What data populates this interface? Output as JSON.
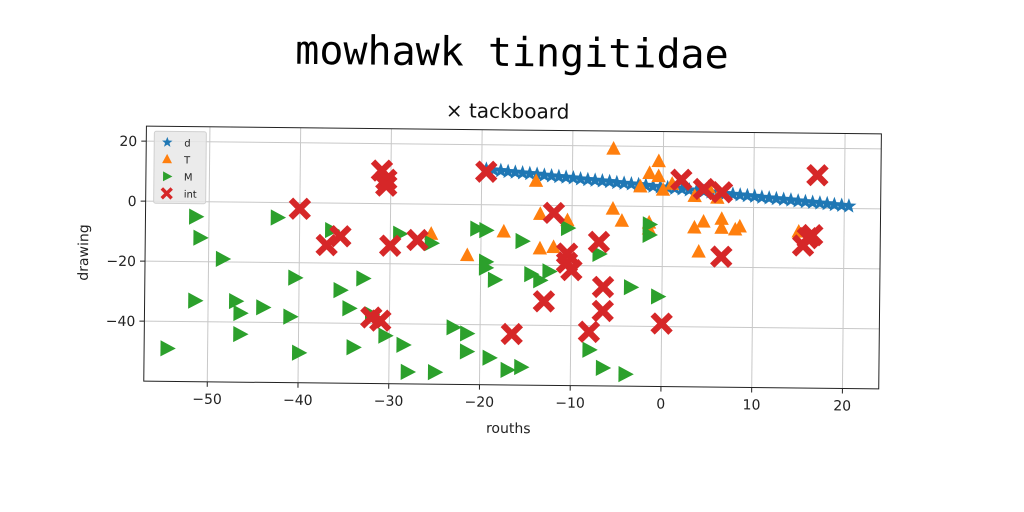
{
  "suptitle": "mowhawk tingitidae",
  "chart_data": {
    "type": "scatter",
    "title": "× tackboard",
    "xlabel": "rouths",
    "ylabel": "drawing",
    "xlim": [
      -57,
      24
    ],
    "ylim": [
      -60,
      25
    ],
    "xticks": [
      -50,
      -40,
      -30,
      -20,
      -10,
      0,
      10,
      20
    ],
    "xtick_labels": [
      "−50",
      "−40",
      "−30",
      "−20",
      "−10",
      "0",
      "10",
      "20"
    ],
    "yticks": [
      20,
      0,
      -20,
      -40
    ],
    "ytick_labels": [
      "20",
      "0",
      "−20",
      "−40"
    ],
    "grid": true,
    "legend_position": "top-left",
    "series": [
      {
        "name": "d",
        "marker": "star",
        "color": "#1f77b4",
        "points": [
          [
            -19.5,
            11.8
          ],
          [
            -18.7,
            11.6
          ],
          [
            -17.9,
            11.4
          ],
          [
            -17.1,
            11.1
          ],
          [
            -16.3,
            10.9
          ],
          [
            -15.5,
            10.7
          ],
          [
            -14.7,
            10.5
          ],
          [
            -13.9,
            10.3
          ],
          [
            -13.1,
            10.0
          ],
          [
            -12.3,
            9.8
          ],
          [
            -11.5,
            9.6
          ],
          [
            -10.7,
            9.4
          ],
          [
            -9.9,
            9.2
          ],
          [
            -9.1,
            8.9
          ],
          [
            -8.3,
            8.7
          ],
          [
            -7.5,
            8.5
          ],
          [
            -6.7,
            8.3
          ],
          [
            -5.9,
            8.1
          ],
          [
            -5.1,
            7.8
          ],
          [
            -4.3,
            7.6
          ],
          [
            -3.5,
            7.4
          ],
          [
            -2.7,
            7.2
          ],
          [
            -1.9,
            7.0
          ],
          [
            -1.1,
            6.7
          ],
          [
            -0.3,
            6.5
          ],
          [
            0.5,
            6.3
          ],
          [
            1.3,
            6.1
          ],
          [
            2.1,
            5.9
          ],
          [
            2.9,
            5.6
          ],
          [
            3.7,
            5.4
          ],
          [
            4.5,
            5.2
          ],
          [
            5.3,
            5.0
          ],
          [
            6.1,
            4.8
          ],
          [
            6.9,
            4.5
          ],
          [
            7.7,
            4.3
          ],
          [
            8.5,
            4.1
          ],
          [
            9.3,
            3.9
          ],
          [
            10.1,
            3.7
          ],
          [
            10.9,
            3.4
          ],
          [
            11.7,
            3.2
          ],
          [
            12.5,
            3.0
          ],
          [
            13.3,
            2.8
          ],
          [
            14.1,
            2.6
          ],
          [
            14.9,
            2.3
          ],
          [
            15.7,
            2.1
          ],
          [
            16.5,
            1.9
          ],
          [
            17.3,
            1.7
          ],
          [
            18.1,
            1.5
          ],
          [
            18.9,
            1.2
          ],
          [
            19.7,
            1.0
          ],
          [
            20.5,
            0.8
          ]
        ]
      },
      {
        "name": "T",
        "marker": "triangle-up",
        "color": "#ff7f0e",
        "points": [
          [
            -5.5,
            19
          ],
          [
            -0.5,
            15
          ],
          [
            -1.5,
            11
          ],
          [
            -0.5,
            10
          ],
          [
            1,
            7.5
          ],
          [
            -2.5,
            6.5
          ],
          [
            0,
            5.5
          ],
          [
            5,
            6.5
          ],
          [
            3.5,
            3.5
          ],
          [
            6,
            3
          ],
          [
            -14,
            8
          ],
          [
            -13.5,
            -3
          ],
          [
            -10.5,
            -5
          ],
          [
            -5.5,
            -1
          ],
          [
            -4.5,
            -5
          ],
          [
            -1.5,
            -5.5
          ],
          [
            -1.5,
            -7.5
          ],
          [
            3.5,
            -7
          ],
          [
            4.5,
            -5
          ],
          [
            6.5,
            -4
          ],
          [
            6.5,
            -7
          ],
          [
            8.5,
            -6.5
          ],
          [
            8,
            -7.5
          ],
          [
            15,
            -8
          ],
          [
            4,
            -15
          ],
          [
            -21.5,
            -17
          ],
          [
            -17.5,
            -9
          ],
          [
            -25.5,
            -10
          ],
          [
            -13.5,
            -14.5
          ],
          [
            -12,
            -14
          ]
        ]
      },
      {
        "name": "M",
        "marker": "triangle-right",
        "color": "#2ca02c",
        "points": [
          [
            -51.5,
            -5
          ],
          [
            -51,
            -12
          ],
          [
            -48.5,
            -19
          ],
          [
            -42.5,
            -5
          ],
          [
            -36.5,
            -9
          ],
          [
            -29,
            -10
          ],
          [
            -25.5,
            -13
          ],
          [
            -20.5,
            -8
          ],
          [
            -19.5,
            -8.5
          ],
          [
            -15.5,
            -12
          ],
          [
            -10.5,
            -7.5
          ],
          [
            -7,
            -16
          ],
          [
            -1.5,
            -6
          ],
          [
            -1.5,
            -9.5
          ],
          [
            -19.5,
            -19
          ],
          [
            -19.5,
            -21
          ],
          [
            -18.5,
            -25
          ],
          [
            -14.5,
            -23
          ],
          [
            -12.5,
            -22
          ],
          [
            -13.5,
            -25
          ],
          [
            -40.5,
            -25
          ],
          [
            -35.5,
            -29
          ],
          [
            -33,
            -25
          ],
          [
            -34.5,
            -35
          ],
          [
            -32,
            -37
          ],
          [
            -30.5,
            -44
          ],
          [
            -28.5,
            -47
          ],
          [
            -23,
            -41
          ],
          [
            -21.5,
            -43
          ],
          [
            -21.5,
            -49
          ],
          [
            -19,
            -51
          ],
          [
            -51.5,
            -33
          ],
          [
            -47,
            -33
          ],
          [
            -46.5,
            -37
          ],
          [
            -44,
            -35
          ],
          [
            -41,
            -38
          ],
          [
            -46.5,
            -44
          ],
          [
            -54.5,
            -49
          ],
          [
            -40,
            -50
          ],
          [
            -34,
            -48
          ],
          [
            -28,
            -56
          ],
          [
            -25,
            -56
          ],
          [
            -17,
            -55
          ],
          [
            -15.5,
            -54
          ],
          [
            -8,
            -48
          ],
          [
            -6.5,
            -54
          ],
          [
            -4,
            -56
          ],
          [
            -3.5,
            -27
          ],
          [
            -0.5,
            -30
          ]
        ]
      },
      {
        "name": "int",
        "marker": "x",
        "color": "#d62728",
        "points": [
          [
            -31,
            11
          ],
          [
            -30.5,
            8
          ],
          [
            -30.5,
            6
          ],
          [
            -19.5,
            11
          ],
          [
            -40,
            -2
          ],
          [
            -12,
            -2.5
          ],
          [
            -35.5,
            -11
          ],
          [
            -37,
            -14
          ],
          [
            -30,
            -14
          ],
          [
            -27,
            -12
          ],
          [
            -10.5,
            -16
          ],
          [
            -10.5,
            -19
          ],
          [
            -10,
            -21.5
          ],
          [
            -7,
            -12
          ],
          [
            -6.5,
            -27
          ],
          [
            -6.5,
            -35
          ],
          [
            -8,
            -42
          ],
          [
            -13,
            -32
          ],
          [
            -16.5,
            -43
          ],
          [
            -32,
            -38
          ],
          [
            -31,
            -39
          ],
          [
            0,
            -39
          ],
          [
            2,
            9
          ],
          [
            4.5,
            6
          ],
          [
            6.5,
            5
          ],
          [
            17,
            11
          ],
          [
            16,
            -10
          ],
          [
            16.5,
            -9
          ],
          [
            15.5,
            -12.5
          ],
          [
            6.5,
            -16.5
          ]
        ]
      }
    ]
  },
  "colors": {
    "d": "#1f77b4",
    "T": "#ff7f0e",
    "M": "#2ca02c",
    "int": "#d62728"
  }
}
